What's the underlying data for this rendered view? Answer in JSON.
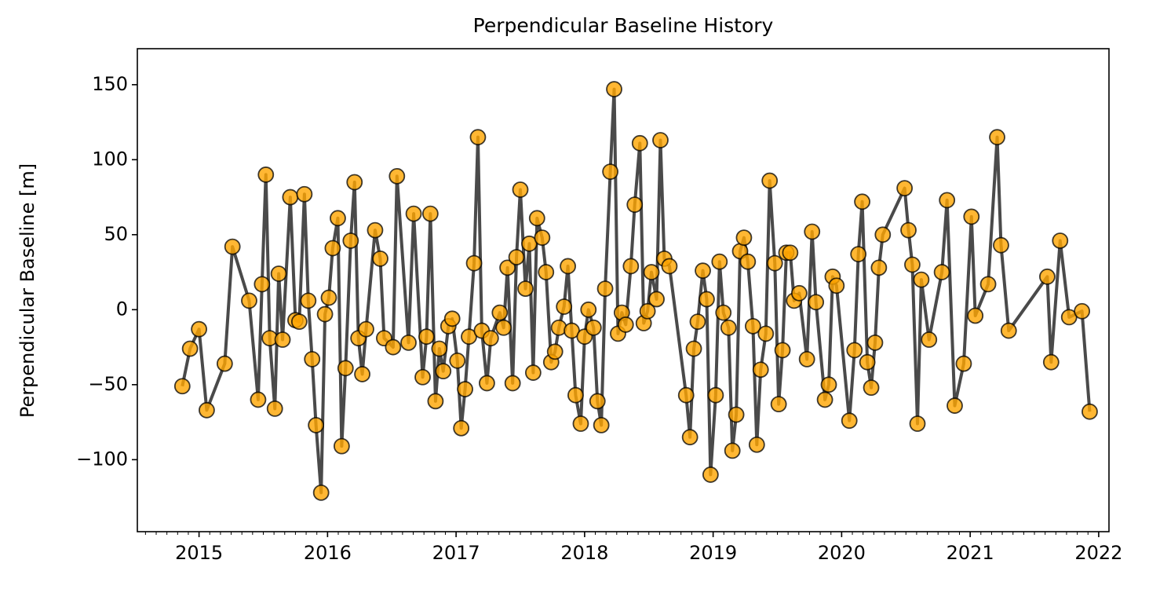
{
  "chart_data": {
    "type": "line",
    "title": "Perpendicular Baseline History",
    "y_label": "Perpendicular Baseline [m]",
    "xlim": [
      2014.52,
      2022.08
    ],
    "ylim": [
      -148,
      174
    ],
    "xticks": [
      2015,
      2016,
      2017,
      2018,
      2019,
      2020,
      2021,
      2022
    ],
    "yticks": [
      150,
      100,
      50,
      0,
      {
        "value": -50,
        "label": "−50"
      },
      {
        "value": -100,
        "label": "−100"
      }
    ],
    "grid": false,
    "line_color": "#404040",
    "marker_color": "#ffa500",
    "marker_edge_color": "#000000",
    "x": [
      2014.87,
      2014.93,
      2015.0,
      2015.06,
      2015.2,
      2015.26,
      2015.39,
      2015.46,
      2015.49,
      2015.52,
      2015.55,
      2015.59,
      2015.62,
      2015.65,
      2015.71,
      2015.75,
      2015.78,
      2015.82,
      2015.85,
      2015.88,
      2015.91,
      2015.95,
      2015.98,
      2016.01,
      2016.04,
      2016.08,
      2016.11,
      2016.14,
      2016.18,
      2016.21,
      2016.24,
      2016.27,
      2016.3,
      2016.37,
      2016.41,
      2016.44,
      2016.51,
      2016.54,
      2016.63,
      2016.67,
      2016.74,
      2016.77,
      2016.8,
      2016.84,
      2016.87,
      2016.9,
      2016.94,
      2016.97,
      2017.01,
      2017.04,
      2017.07,
      2017.1,
      2017.14,
      2017.17,
      2017.2,
      2017.24,
      2017.27,
      2017.34,
      2017.37,
      2017.4,
      2017.44,
      2017.47,
      2017.5,
      2017.54,
      2017.57,
      2017.6,
      2017.63,
      2017.67,
      2017.7,
      2017.74,
      2017.77,
      2017.8,
      2017.84,
      2017.87,
      2017.9,
      2017.93,
      2017.97,
      2018.0,
      2018.03,
      2018.07,
      2018.1,
      2018.13,
      2018.16,
      2018.2,
      2018.23,
      2018.26,
      2018.29,
      2018.32,
      2018.36,
      2018.39,
      2018.43,
      2018.46,
      2018.49,
      2018.52,
      2018.56,
      2018.59,
      2018.62,
      2018.66,
      2018.79,
      2018.82,
      2018.85,
      2018.88,
      2018.92,
      2018.95,
      2018.98,
      2019.02,
      2019.05,
      2019.08,
      2019.12,
      2019.15,
      2019.18,
      2019.21,
      2019.24,
      2019.27,
      2019.31,
      2019.34,
      2019.37,
      2019.41,
      2019.44,
      2019.48,
      2019.51,
      2019.54,
      2019.57,
      2019.6,
      2019.63,
      2019.67,
      2019.73,
      2019.77,
      2019.8,
      2019.87,
      2019.9,
      2019.93,
      2019.96,
      2020.06,
      2020.1,
      2020.13,
      2020.16,
      2020.2,
      2020.23,
      2020.26,
      2020.29,
      2020.32,
      2020.49,
      2020.52,
      2020.55,
      2020.59,
      2020.62,
      2020.68,
      2020.78,
      2020.82,
      2020.88,
      2020.95,
      2021.01,
      2021.04,
      2021.14,
      2021.21,
      2021.24,
      2021.3,
      2021.6,
      2021.63,
      2021.7,
      2021.77,
      2021.87,
      2021.93
    ],
    "values": [
      -51,
      -26,
      -13,
      -67,
      -36,
      42,
      6,
      -60,
      17,
      90,
      -19,
      -66,
      24,
      -20,
      75,
      -7,
      -8,
      77,
      6,
      -33,
      -77,
      -122,
      -3,
      8,
      41,
      61,
      -91,
      -39,
      46,
      85,
      -19,
      -43,
      -13,
      53,
      34,
      -19,
      -25,
      89,
      -22,
      64,
      -45,
      -18,
      64,
      -61,
      -26,
      -41,
      -11,
      -6,
      -34,
      -79,
      -53,
      -18,
      31,
      115,
      -14,
      -49,
      -19,
      -2,
      -12,
      28,
      -49,
      35,
      80,
      14,
      44,
      -42,
      61,
      48,
      25,
      -35,
      -28,
      -12,
      2,
      29,
      -14,
      -57,
      -76,
      -18,
      0,
      -12,
      -61,
      -77,
      14,
      92,
      147,
      -16,
      -2,
      -10,
      29,
      70,
      111,
      -9,
      -1,
      25,
      7,
      113,
      34,
      29,
      -57,
      -85,
      -26,
      -8,
      26,
      7,
      -110,
      -57,
      32,
      -2,
      -12,
      -94,
      -70,
      39,
      48,
      32,
      -11,
      -90,
      -40,
      -16,
      86,
      31,
      -63,
      -27,
      38,
      38,
      6,
      11,
      -33,
      52,
      5,
      -60,
      -50,
      22,
      16,
      -74,
      -27,
      37,
      72,
      -35,
      -52,
      -22,
      28,
      50,
      81,
      53,
      30,
      -76,
      20,
      -20,
      25,
      73,
      -64,
      -36,
      62,
      -4,
      17,
      115,
      43,
      -14,
      22,
      -35,
      46,
      -5,
      -1,
      -68
    ]
  }
}
